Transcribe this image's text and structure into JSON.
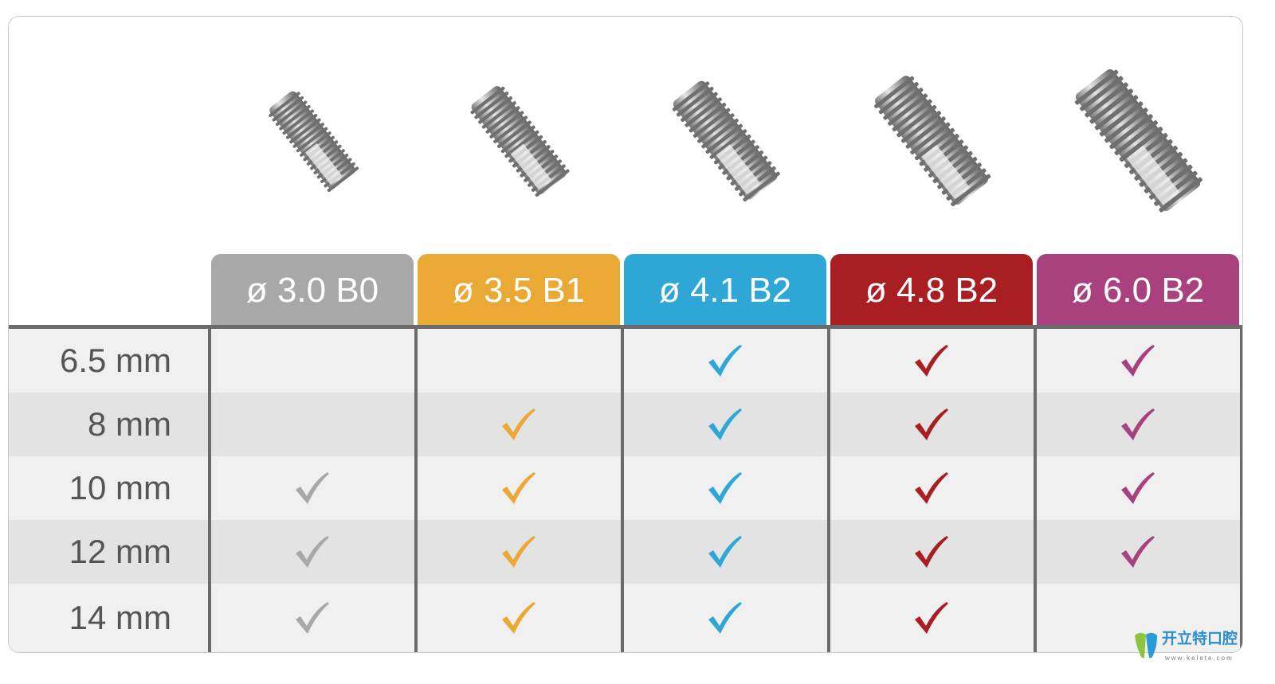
{
  "columns": [
    {
      "label": "ø 3.0 B0",
      "color": "#a8a8a8",
      "implant_scale": 0.78
    },
    {
      "label": "ø 3.5 B1",
      "color": "#eaa935",
      "implant_scale": 0.86
    },
    {
      "label": "ø 4.1 B2",
      "color": "#2fa7d6",
      "implant_scale": 0.94
    },
    {
      "label": "ø 4.8 B2",
      "color": "#a81e23",
      "implant_scale": 1.02
    },
    {
      "label": "ø 6.0 B2",
      "color": "#a8417e",
      "implant_scale": 1.12
    }
  ],
  "rows": [
    {
      "label": "6.5 mm",
      "available": [
        false,
        false,
        true,
        true,
        true
      ]
    },
    {
      "label": "8 mm",
      "available": [
        false,
        true,
        true,
        true,
        true
      ]
    },
    {
      "label": "10 mm",
      "available": [
        true,
        true,
        true,
        true,
        true
      ]
    },
    {
      "label": "12 mm",
      "available": [
        true,
        true,
        true,
        true,
        true
      ]
    },
    {
      "label": "14 mm",
      "available": [
        true,
        true,
        true,
        true,
        false
      ]
    }
  ],
  "row_colors": [
    "#f0f0f0",
    "#e3e3e3"
  ],
  "watermark": {
    "brand": "开立特口腔",
    "url": "www.kelete.com"
  }
}
